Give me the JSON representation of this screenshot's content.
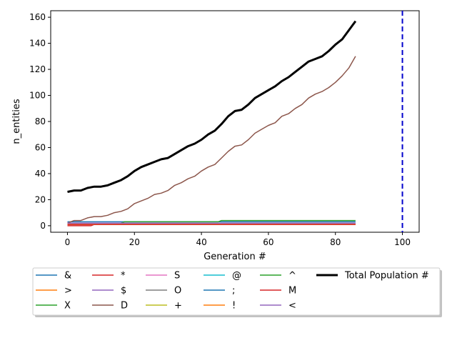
{
  "chart_data": {
    "type": "line",
    "xlabel": "Generation #",
    "ylabel": "n_entities",
    "xlim": [
      -5,
      105
    ],
    "ylim": [
      -5,
      165
    ],
    "xticks": [
      0,
      20,
      40,
      60,
      80,
      100
    ],
    "yticks": [
      0,
      20,
      40,
      60,
      80,
      100,
      120,
      140,
      160
    ],
    "grid": false,
    "legend_position": "below-plot",
    "vline": {
      "x": 100,
      "color": "#0000cc",
      "style": "dashed"
    },
    "series": [
      {
        "name": "&",
        "color": "#1f77b4",
        "points": [
          [
            0,
            3
          ],
          [
            86,
            3
          ]
        ]
      },
      {
        "name": ">",
        "color": "#ff7f0e",
        "points": [
          [
            0,
            2
          ],
          [
            86,
            2
          ]
        ]
      },
      {
        "name": "X",
        "color": "#2ca02c",
        "points": [
          [
            0,
            2
          ],
          [
            86,
            2
          ]
        ]
      },
      {
        "name": "*",
        "color": "#d62728",
        "points": [
          [
            0,
            0
          ],
          [
            7,
            0
          ],
          [
            8,
            1
          ],
          [
            86,
            1
          ]
        ]
      },
      {
        "name": "$",
        "color": "#9467bd",
        "points": [
          [
            0,
            1
          ],
          [
            86,
            1
          ]
        ]
      },
      {
        "name": "D",
        "color": "#8c564b",
        "points": [
          [
            0,
            2
          ],
          [
            2,
            4
          ],
          [
            4,
            4
          ],
          [
            6,
            6
          ],
          [
            8,
            7
          ],
          [
            10,
            7
          ],
          [
            12,
            8
          ],
          [
            14,
            10
          ],
          [
            16,
            11
          ],
          [
            18,
            13
          ],
          [
            20,
            17
          ],
          [
            22,
            19
          ],
          [
            24,
            21
          ],
          [
            26,
            24
          ],
          [
            28,
            25
          ],
          [
            30,
            27
          ],
          [
            32,
            31
          ],
          [
            34,
            33
          ],
          [
            36,
            36
          ],
          [
            38,
            38
          ],
          [
            40,
            42
          ],
          [
            42,
            45
          ],
          [
            44,
            47
          ],
          [
            46,
            52
          ],
          [
            48,
            57
          ],
          [
            50,
            61
          ],
          [
            52,
            62
          ],
          [
            54,
            66
          ],
          [
            56,
            71
          ],
          [
            58,
            74
          ],
          [
            60,
            77
          ],
          [
            62,
            79
          ],
          [
            64,
            84
          ],
          [
            66,
            86
          ],
          [
            68,
            90
          ],
          [
            70,
            93
          ],
          [
            72,
            98
          ],
          [
            74,
            101
          ],
          [
            76,
            103
          ],
          [
            78,
            106
          ],
          [
            80,
            110
          ],
          [
            82,
            115
          ],
          [
            84,
            121
          ],
          [
            86,
            130
          ]
        ]
      },
      {
        "name": "S",
        "color": "#e377c2",
        "points": [
          [
            0,
            1
          ],
          [
            86,
            1
          ]
        ]
      },
      {
        "name": "O",
        "color": "#7f7f7f",
        "points": [
          [
            0,
            1
          ],
          [
            86,
            1
          ]
        ]
      },
      {
        "name": "+",
        "color": "#bcbd22",
        "points": [
          [
            0,
            1
          ],
          [
            86,
            1
          ]
        ]
      },
      {
        "name": "@",
        "color": "#17becf",
        "points": [
          [
            0,
            2
          ],
          [
            86,
            2
          ]
        ]
      },
      {
        "name": ";",
        "color": "#1f77b4",
        "points": [
          [
            0,
            2
          ],
          [
            86,
            2
          ]
        ]
      },
      {
        "name": "!",
        "color": "#ff7f0e",
        "points": [
          [
            0,
            1
          ],
          [
            86,
            1
          ]
        ]
      },
      {
        "name": "^",
        "color": "#2ca02c",
        "points": [
          [
            0,
            2
          ],
          [
            16,
            2
          ],
          [
            17,
            3
          ],
          [
            45,
            3
          ],
          [
            46,
            4
          ],
          [
            86,
            4
          ]
        ]
      },
      {
        "name": "M",
        "color": "#d62728",
        "points": [
          [
            0,
            1
          ],
          [
            86,
            1
          ]
        ]
      },
      {
        "name": "<",
        "color": "#9467bd",
        "points": [
          [
            0,
            2
          ],
          [
            86,
            2
          ]
        ]
      },
      {
        "name": "Total Population #",
        "color": "#000000",
        "bold": true,
        "points": [
          [
            0,
            26
          ],
          [
            2,
            27
          ],
          [
            4,
            27
          ],
          [
            6,
            29
          ],
          [
            8,
            30
          ],
          [
            10,
            30
          ],
          [
            12,
            31
          ],
          [
            14,
            33
          ],
          [
            16,
            35
          ],
          [
            18,
            38
          ],
          [
            20,
            42
          ],
          [
            22,
            45
          ],
          [
            24,
            47
          ],
          [
            26,
            49
          ],
          [
            28,
            51
          ],
          [
            30,
            52
          ],
          [
            32,
            55
          ],
          [
            34,
            58
          ],
          [
            36,
            61
          ],
          [
            38,
            63
          ],
          [
            40,
            66
          ],
          [
            42,
            70
          ],
          [
            44,
            73
          ],
          [
            46,
            78
          ],
          [
            48,
            84
          ],
          [
            50,
            88
          ],
          [
            52,
            89
          ],
          [
            54,
            93
          ],
          [
            56,
            98
          ],
          [
            58,
            101
          ],
          [
            60,
            104
          ],
          [
            62,
            107
          ],
          [
            64,
            111
          ],
          [
            66,
            114
          ],
          [
            68,
            118
          ],
          [
            70,
            122
          ],
          [
            72,
            126
          ],
          [
            74,
            128
          ],
          [
            76,
            130
          ],
          [
            78,
            134
          ],
          [
            80,
            139
          ],
          [
            82,
            143
          ],
          [
            84,
            150
          ],
          [
            86,
            157
          ]
        ]
      }
    ]
  }
}
